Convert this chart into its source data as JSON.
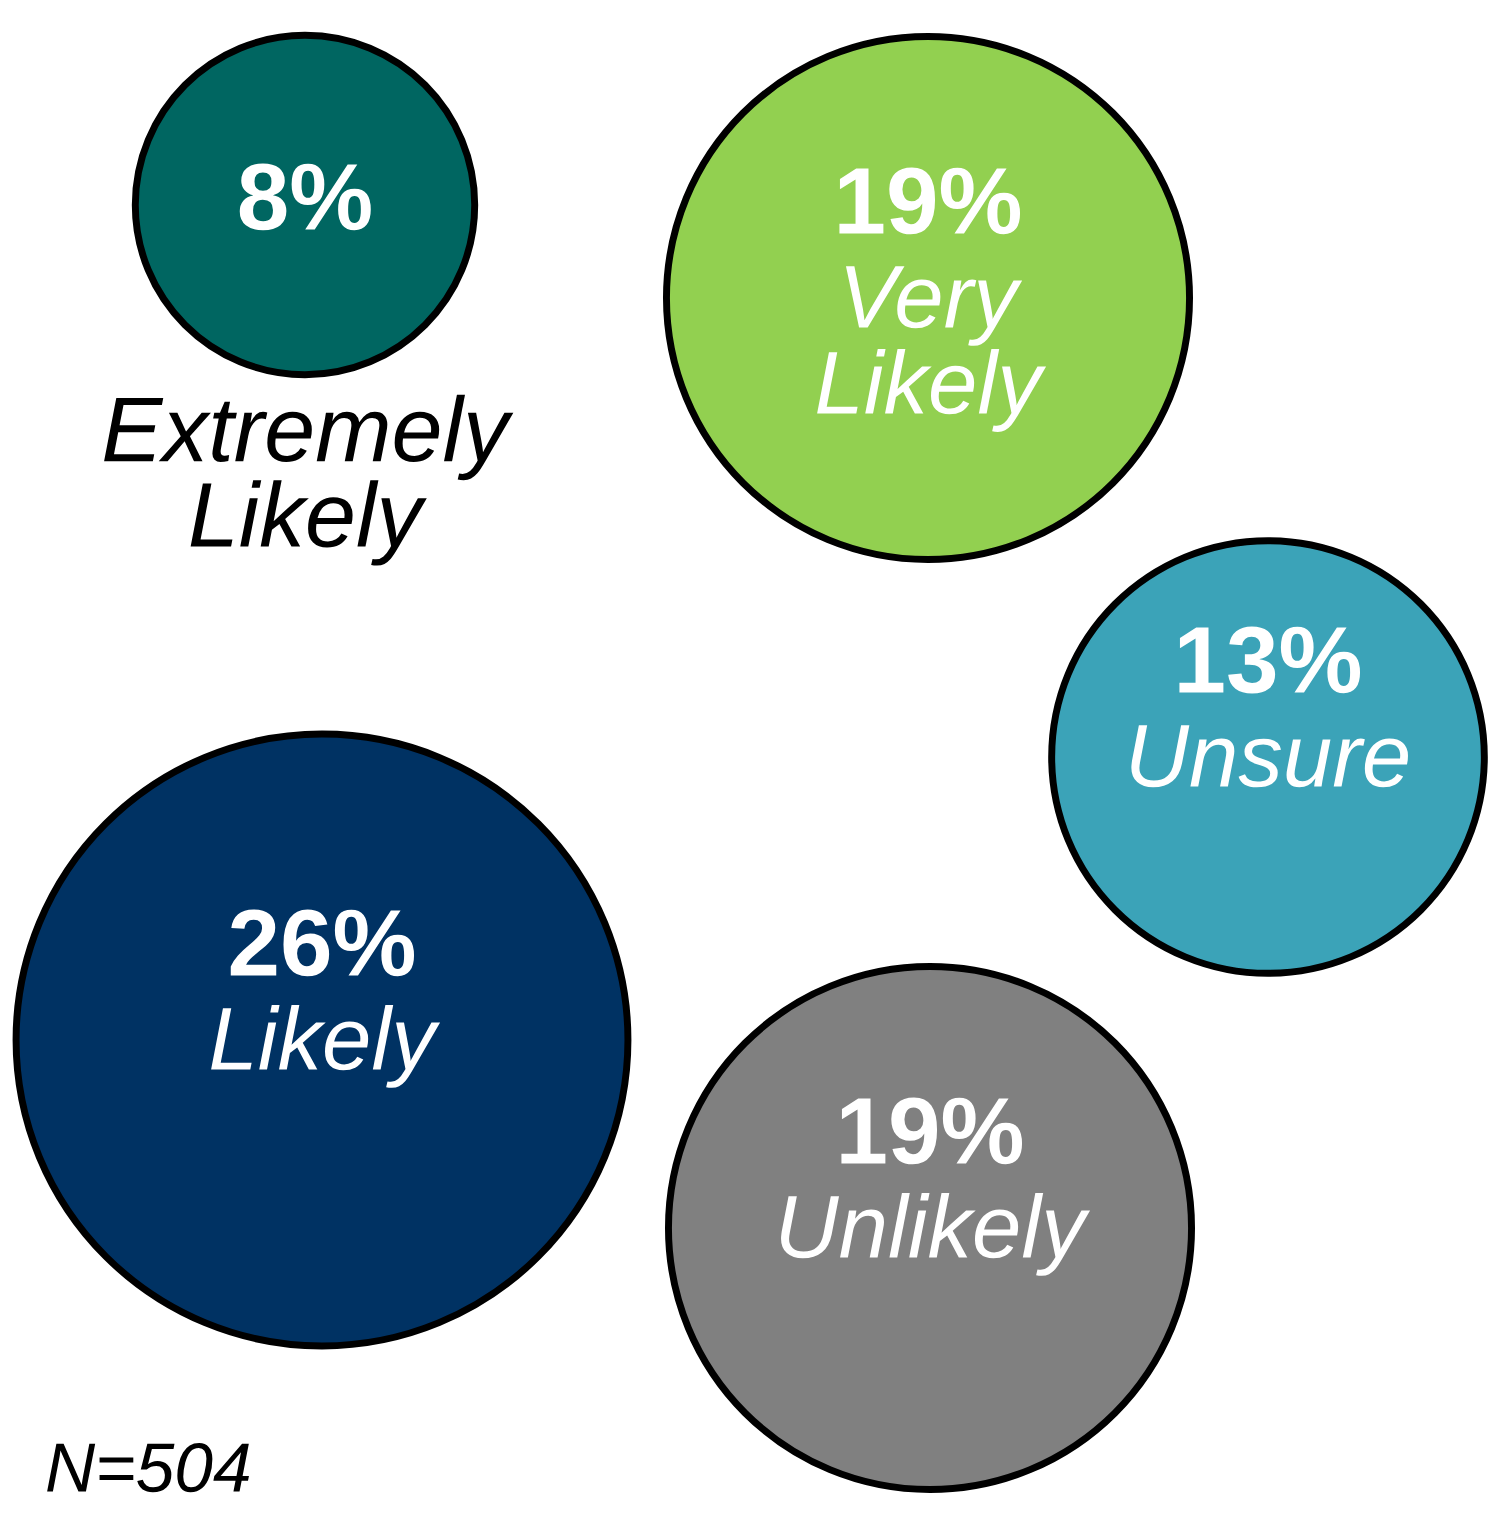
{
  "chart_data": {
    "type": "other",
    "categories": [
      "Extremely Likely",
      "Very Likely",
      "Unsure",
      "Likely",
      "Unlikely"
    ],
    "values": [
      8,
      19,
      13,
      26,
      19
    ],
    "value_labels": [
      "8%",
      "19%",
      "13%",
      "26%",
      "19%"
    ],
    "colors": [
      "#006661",
      "#92d050",
      "#3ba3b8",
      "#003263",
      "#808080"
    ],
    "annotations": [
      "N=504"
    ]
  }
}
